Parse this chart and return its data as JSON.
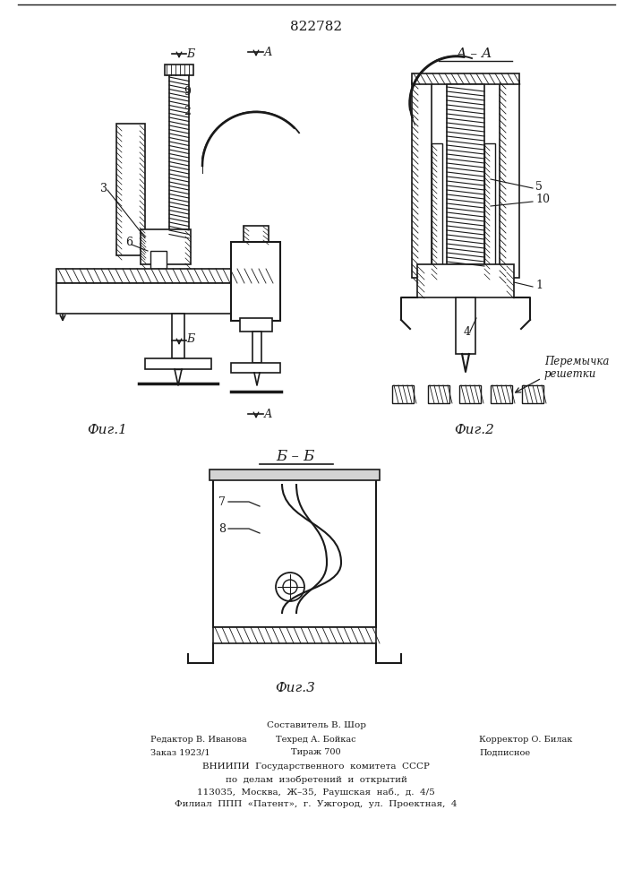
{
  "patent_number": "822782",
  "fig1_label": "Фиг.1",
  "fig2_label": "Фиг.2",
  "fig3_label": "Фиг.3",
  "section_aa": "А – А",
  "section_bb": "Б – Б",
  "footer_line1": "Составитель В. Шор",
  "footer_line2_left": "Редактор В. Иванова",
  "footer_line2_mid": "Техред А. Бойкас",
  "footer_line2_right": "Корректор О. Билак",
  "footer_line3_left": "Заказ 1923/1",
  "footer_line3_mid": "Тираж 700",
  "footer_line3_right": "Подписное",
  "footer_line4": "ВНИИПИ  Государственного  комитета  СССР",
  "footer_line5": "по  делам  изобретений  и  открытий",
  "footer_line6": "113035,  Москва,  Ж–35,  Раушская  наб.,  д.  4/5",
  "footer_line7": "Филиал  ППП  «Патент»,  г.  Ужгород,  ул.  Проектная,  4",
  "label_9": "9",
  "label_2": "2",
  "label_3": "3",
  "label_6": "6",
  "label_5": "5",
  "label_10": "10",
  "label_1": "1",
  "label_4": "4",
  "label_7": "7",
  "label_8": "8",
  "label_A_top": "А",
  "label_B_top": "Б",
  "label_peremica": "Перемычка",
  "label_reshetki": "решетки",
  "bg_color": "#ffffff",
  "line_color": "#1a1a1a"
}
